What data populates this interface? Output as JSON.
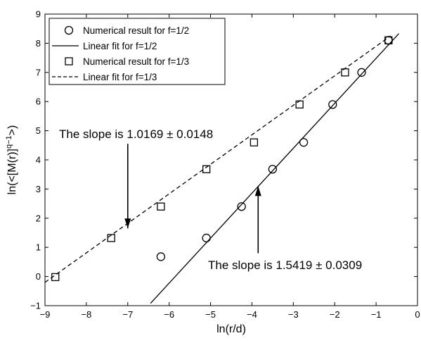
{
  "chart_data": {
    "type": "scatter",
    "xlabel": "ln(r/d)",
    "ylabel_parts": {
      "base": "ln(<[M(r)]",
      "sup": "q−1",
      "end": ">)"
    },
    "xlim": [
      -9,
      0
    ],
    "ylim": [
      -1,
      9
    ],
    "x_ticks": [
      -9,
      -8,
      -7,
      -6,
      -5,
      -4,
      -3,
      -2,
      -1,
      0
    ],
    "y_ticks": [
      -1,
      0,
      1,
      2,
      3,
      4,
      5,
      6,
      7,
      8,
      9
    ],
    "x_tick_labels": [
      "−9",
      "−8",
      "−7",
      "−6",
      "−5",
      "−4",
      "−3",
      "−2",
      "−1",
      "0"
    ],
    "y_tick_labels": [
      "−1",
      "0",
      "1",
      "2",
      "3",
      "4",
      "5",
      "6",
      "7",
      "8",
      "9"
    ],
    "grid": false,
    "legend_position": "top-left",
    "series": [
      {
        "name": "Numerical result for f=1/2",
        "marker": "circle",
        "x": [
          -6.2,
          -5.1,
          -4.25,
          -3.5,
          -2.75,
          -2.05,
          -1.35,
          -0.7
        ],
        "y": [
          0.68,
          1.32,
          2.4,
          3.68,
          4.6,
          5.9,
          7.0,
          8.1
        ]
      },
      {
        "name": "Linear fit for f=1/2",
        "line": "solid",
        "x": [
          -6.45,
          -0.45
        ],
        "y": [
          -0.92,
          8.33
        ]
      },
      {
        "name": "Numerical result for f=1/3",
        "marker": "square",
        "x": [
          -8.75,
          -7.4,
          -6.2,
          -5.1,
          -3.95,
          -2.85,
          -1.75,
          -0.7
        ],
        "y": [
          -0.02,
          1.32,
          2.4,
          3.68,
          4.6,
          5.9,
          7.0,
          8.1
        ]
      },
      {
        "name": "Linear fit for f=1/3",
        "line": "dashed",
        "x": [
          -9.0,
          -0.65
        ],
        "y": [
          -0.2,
          8.25
        ]
      }
    ],
    "annotations": [
      {
        "text": "The slope is 1.0169 ± 0.0148",
        "arrow_from": [
          -7.0,
          4.55
        ],
        "arrow_to": [
          -7.0,
          1.65
        ]
      },
      {
        "text": "The slope is 1.5419 ± 0.0309",
        "arrow_from": [
          -3.85,
          0.8
        ],
        "arrow_to": [
          -3.85,
          3.1
        ]
      }
    ]
  }
}
